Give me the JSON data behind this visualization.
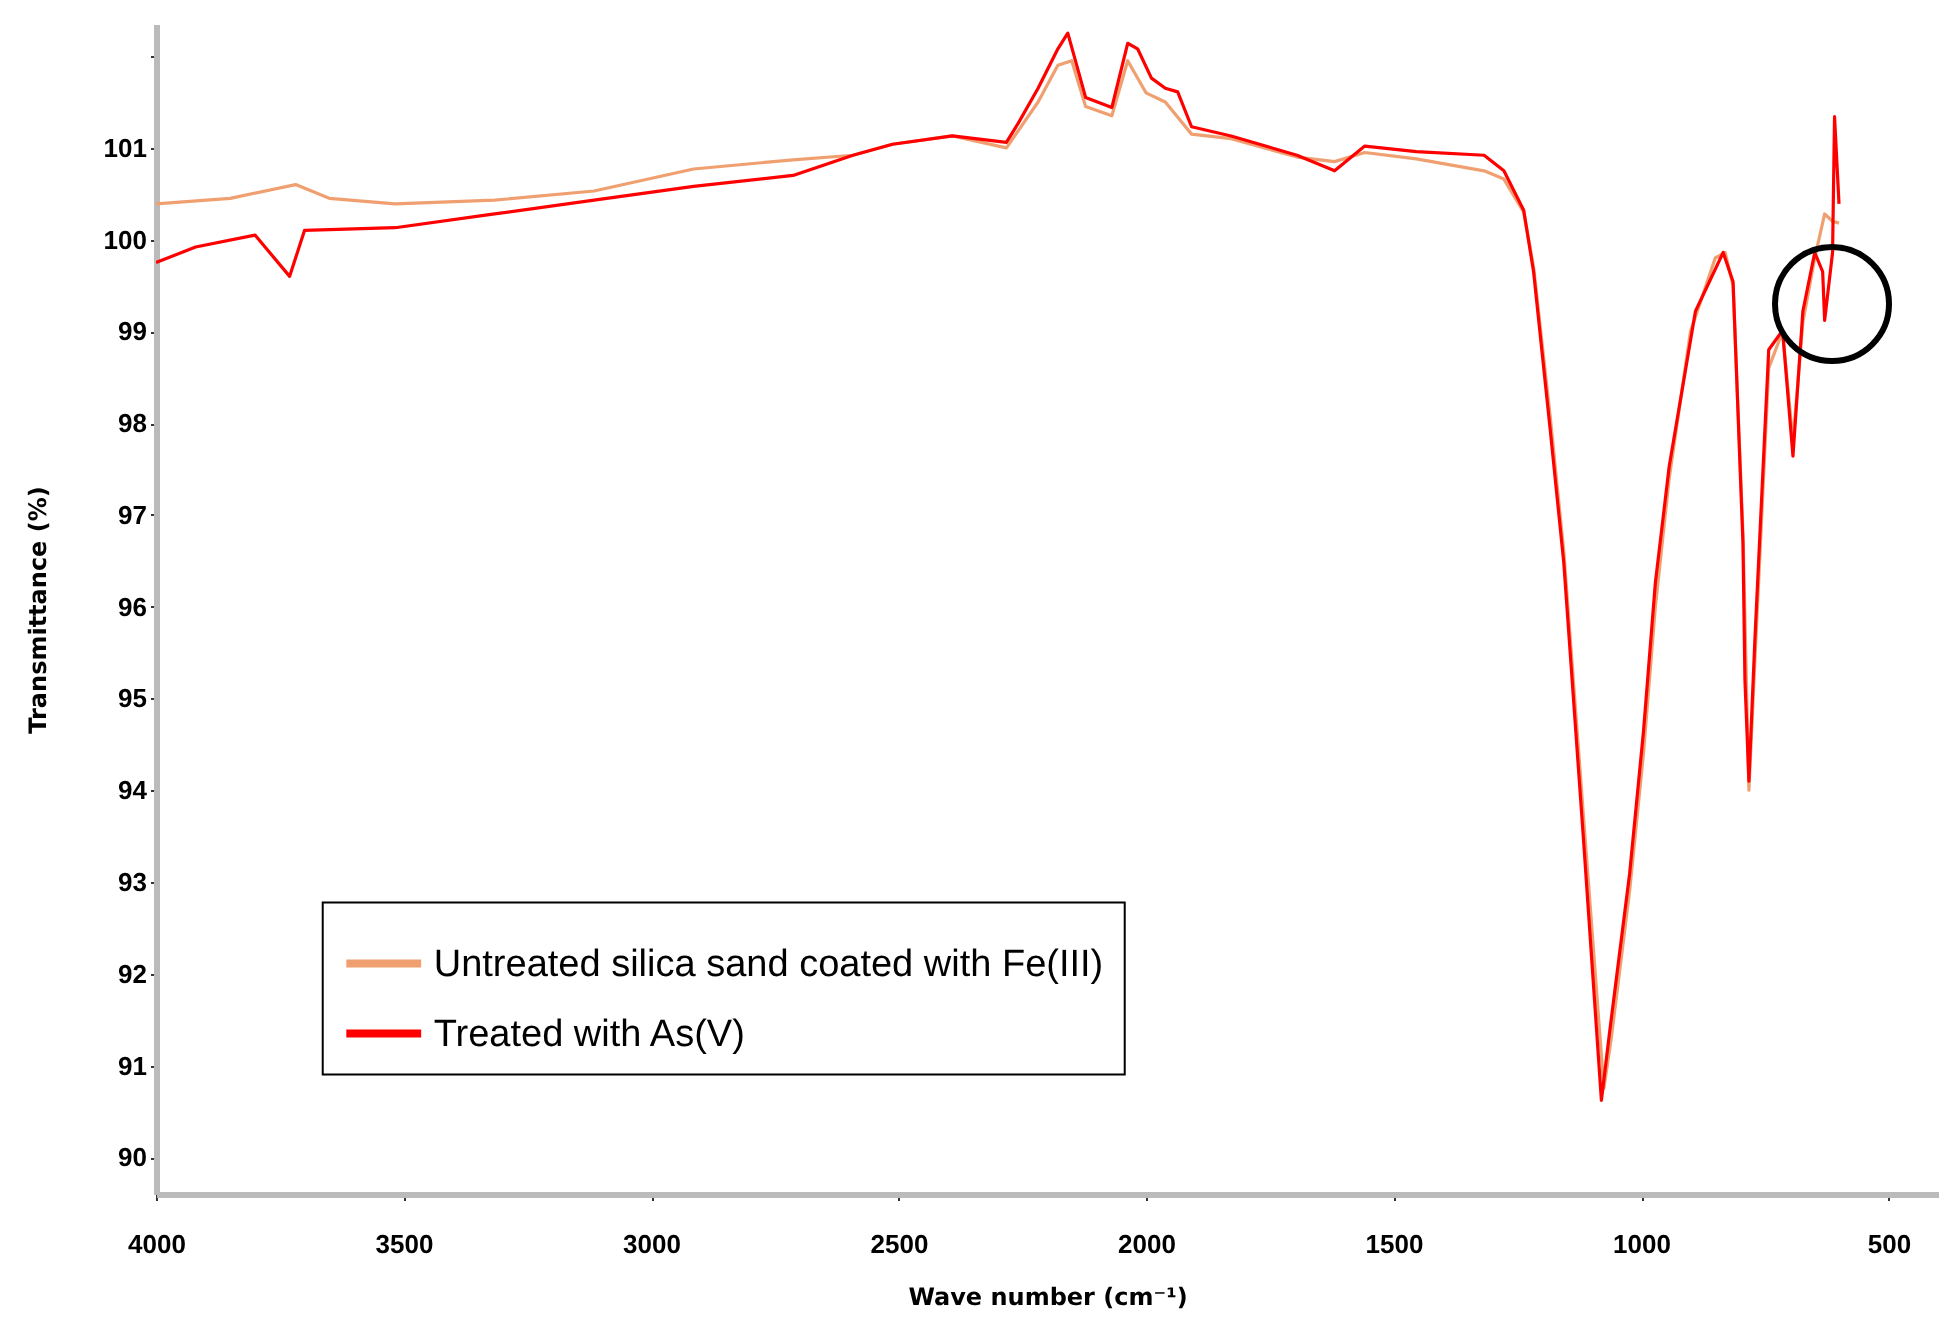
{
  "chart_data": {
    "type": "line",
    "xlabel": "Wave number (cm⁻¹)",
    "ylabel": "Transmittance (%)",
    "xlim": [
      4000,
      400
    ],
    "xticks": [
      4000,
      3500,
      3000,
      2500,
      2000,
      1500,
      1000,
      500
    ],
    "ylim": [
      89.6,
      102.35
    ],
    "yticks": [
      90,
      91,
      92,
      93,
      94,
      95,
      96,
      97,
      98,
      99,
      100,
      101,
      {
        "value": 102,
        "label": null
      }
    ],
    "legend": "bottom left",
    "grid": false,
    "marker": "none",
    "line_style": "solid",
    "series": [
      {
        "name": "Untreated silica sand coated with Fe(III)",
        "color": "#f0a070",
        "x": [
          4000,
          3850,
          3718,
          3650,
          3517,
          3316,
          3115,
          2914,
          2713,
          2592,
          2512,
          2391,
          2282,
          2218,
          2178,
          2150,
          2122,
          2069,
          2037,
          2000,
          1961,
          1908,
          1828,
          1695,
          1619,
          1558,
          1454,
          1317,
          1277,
          1237,
          1217,
          1184,
          1156,
          1116,
          1075,
          1060,
          1023,
          995,
          971,
          943,
          900,
          850,
          830,
          814,
          794,
          782,
          770,
          742,
          714,
          693,
          673,
          649,
          629,
          613,
          600
        ],
        "values": [
          100.39,
          100.45,
          100.6,
          100.45,
          100.39,
          100.43,
          100.53,
          100.77,
          100.87,
          100.92,
          101.04,
          101.13,
          101.0,
          101.5,
          101.9,
          101.95,
          101.45,
          101.35,
          101.95,
          101.6,
          101.5,
          101.15,
          101.1,
          100.9,
          100.85,
          100.95,
          100.88,
          100.75,
          100.66,
          100.3,
          99.7,
          98.1,
          96.6,
          93.7,
          90.75,
          91.3,
          92.9,
          94.4,
          96.0,
          97.4,
          99.0,
          99.8,
          99.86,
          99.5,
          96.8,
          94.0,
          95.4,
          98.6,
          99.0,
          97.8,
          99.1,
          99.8,
          100.28,
          100.2,
          100.18
        ]
      },
      {
        "name": "Treated with As(V)",
        "color": "#ff0000",
        "x": [
          4000,
          3920,
          3800,
          3730,
          3700,
          3517,
          3316,
          3115,
          2914,
          2713,
          2592,
          2512,
          2391,
          2282,
          2258,
          2218,
          2178,
          2158,
          2122,
          2069,
          2037,
          2017,
          1989,
          1961,
          1936,
          1908,
          1828,
          1695,
          1619,
          1558,
          1454,
          1317,
          1277,
          1237,
          1217,
          1184,
          1156,
          1116,
          1080,
          1064,
          1023,
          995,
          971,
          943,
          890,
          834,
          814,
          794,
          790,
          782,
          770,
          742,
          714,
          693,
          673,
          649,
          633,
          629,
          613,
          609,
          600
        ],
        "values": [
          99.75,
          99.92,
          100.05,
          99.6,
          100.1,
          100.13,
          100.28,
          100.43,
          100.58,
          100.7,
          100.92,
          101.04,
          101.13,
          101.06,
          101.27,
          101.65,
          102.08,
          102.25,
          101.55,
          101.44,
          102.14,
          102.08,
          101.76,
          101.65,
          101.61,
          101.23,
          101.13,
          100.92,
          100.75,
          101.02,
          100.96,
          100.92,
          100.75,
          100.32,
          99.65,
          97.96,
          96.48,
          93.45,
          90.62,
          91.34,
          93.09,
          94.64,
          96.26,
          97.53,
          99.22,
          99.86,
          99.54,
          96.69,
          95.2,
          94.1,
          95.63,
          98.8,
          99.01,
          97.64,
          99.22,
          99.86,
          99.65,
          99.12,
          99.86,
          101.34,
          100.39
        ]
      }
    ]
  }
}
